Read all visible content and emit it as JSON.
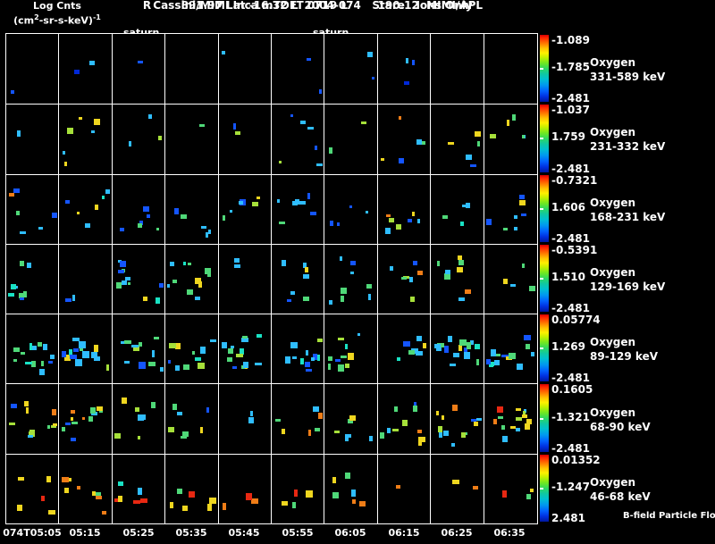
{
  "header": {
    "title": "Cassini/MIMI Inca mTOF  2004-074   Stare   Ions Only",
    "subtitle": "R        891.97 Lat -16.32 LT 0719 L        190.12  MIMI/APL",
    "legend_title": "Log Cnts",
    "units_prefix": "(cm",
    "units_sup1": "2",
    "units_mid": "-sr-s-keV)",
    "units_sup2": "-1"
  },
  "events": [
    {
      "label": "saturn"
    },
    {
      "label": "saturn"
    }
  ],
  "footer": {
    "bfield_label": "B-field Particle Flow"
  },
  "chart_data": {
    "type": "heatmap",
    "title": "Cassini/MIMI INCA mTOF stare-mode ion counts, day 2004-074, seven oxygen energy passbands vs time",
    "colorbar_units": "Log Cnts (cm2-sr-s-keV)-1",
    "x_axis": {
      "tick_labels": [
        "074T05:05",
        "05:15",
        "05:25",
        "05:35",
        "05:45",
        "05:55",
        "06:05",
        "06:15",
        "06:25",
        "06:35"
      ],
      "n_columns": 10,
      "grid": true
    },
    "palette": {
      "dblue": "#0028d8",
      "blue": "#1455ff",
      "cyan": "#2fbdff",
      "teal": "#19e2c4",
      "green": "#4fd878",
      "ygreen": "#a6e03a",
      "yellow": "#efd61f",
      "orange": "#ef7d17",
      "red": "#e82812"
    },
    "panels": [
      {
        "species": "Oxygen",
        "energy": "331-589 keV",
        "scale_top": "-1.089",
        "scale_mid": "-1.785",
        "scale_bottom": "-2.481",
        "n_points": 12,
        "seed": 7,
        "colors": [
          [
            "blue",
            5
          ],
          [
            "dblue",
            3
          ],
          [
            "cyan",
            3
          ]
        ],
        "y_range": [
          0.15,
          0.92
        ],
        "mid_pull": 0.1,
        "size": [
          3,
          6
        ]
      },
      {
        "species": "Oxygen",
        "energy": "231-332 keV",
        "scale_top": "-1.037",
        "scale_mid": "1.759",
        "scale_bottom": "-2.481",
        "n_points": 36,
        "seed": 13,
        "colors": [
          [
            "cyan",
            30
          ],
          [
            "blue",
            22
          ],
          [
            "green",
            16
          ],
          [
            "yellow",
            12
          ],
          [
            "ygreen",
            8
          ],
          [
            "orange",
            6
          ],
          [
            "red",
            3
          ],
          [
            "dblue",
            3
          ]
        ],
        "y_range": [
          0.08,
          0.95
        ],
        "mid_pull": 0.15,
        "size": [
          3,
          7
        ]
      },
      {
        "species": "Oxygen",
        "energy": "168-231 keV",
        "scale_top": "-0.7321",
        "scale_mid": "1.606",
        "scale_bottom": "-2.481",
        "n_points": 58,
        "seed": 21,
        "colors": [
          [
            "cyan",
            34
          ],
          [
            "blue",
            26
          ],
          [
            "green",
            16
          ],
          [
            "teal",
            8
          ],
          [
            "yellow",
            8
          ],
          [
            "ygreen",
            5
          ],
          [
            "orange",
            3
          ]
        ],
        "y_range": [
          0.12,
          0.95
        ],
        "mid_pull": 0.2,
        "size": [
          3,
          7
        ]
      },
      {
        "species": "Oxygen",
        "energy": "129-169 keV",
        "scale_top": "-0.5391",
        "scale_mid": "1.510",
        "scale_bottom": "-2.481",
        "n_points": 68,
        "seed": 29,
        "colors": [
          [
            "cyan",
            32
          ],
          [
            "green",
            22
          ],
          [
            "blue",
            16
          ],
          [
            "teal",
            8
          ],
          [
            "yellow",
            12
          ],
          [
            "ygreen",
            8
          ],
          [
            "orange",
            2
          ]
        ],
        "y_range": [
          0.1,
          0.95
        ],
        "mid_pull": 0.2,
        "size": [
          3,
          7
        ]
      },
      {
        "species": "Oxygen",
        "energy": "89-129 keV",
        "scale_top": "0.05774",
        "scale_mid": "1.269",
        "scale_bottom": "-2.481",
        "n_points": 118,
        "seed": 37,
        "colors": [
          [
            "cyan",
            36
          ],
          [
            "blue",
            20
          ],
          [
            "green",
            18
          ],
          [
            "teal",
            12
          ],
          [
            "yellow",
            8
          ],
          [
            "ygreen",
            6
          ]
        ],
        "y_range": [
          0.2,
          0.95
        ],
        "mid_pull": 0.45,
        "size": [
          3,
          8
        ]
      },
      {
        "species": "Oxygen",
        "energy": "68-90 keV",
        "scale_top": "0.1605",
        "scale_mid": "-1.321",
        "scale_bottom": "-2.481",
        "n_points": 88,
        "seed": 43,
        "colors": [
          [
            "green",
            22
          ],
          [
            "yellow",
            22
          ],
          [
            "cyan",
            20
          ],
          [
            "ygreen",
            14
          ],
          [
            "orange",
            10
          ],
          [
            "blue",
            6
          ],
          [
            "red",
            2
          ]
        ],
        "y_range": [
          0.15,
          0.95
        ],
        "mid_pull": 0.25,
        "size": [
          3,
          7
        ]
      },
      {
        "species": "Oxygen",
        "energy": "46-68 keV",
        "scale_top": "0.01352",
        "scale_mid": "-1.247",
        "scale_bottom": "2.481",
        "n_points": 44,
        "seed": 51,
        "colors": [
          [
            "yellow",
            30
          ],
          [
            "orange",
            26
          ],
          [
            "red",
            14
          ],
          [
            "cyan",
            10
          ],
          [
            "green",
            8
          ],
          [
            "teal",
            4
          ]
        ],
        "y_range": [
          0.25,
          0.95
        ],
        "mid_pull": 0.15,
        "size": [
          4,
          8
        ]
      }
    ]
  }
}
